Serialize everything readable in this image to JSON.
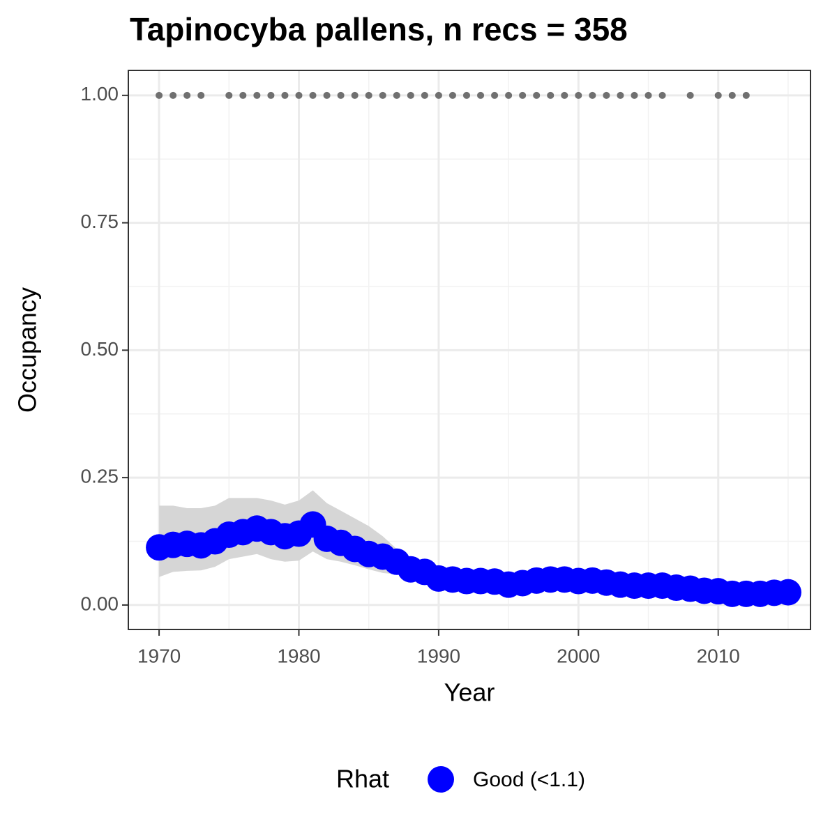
{
  "chart_data": {
    "type": "line",
    "title": "Tapinocyba pallens, n recs = 358",
    "x_label": "Year",
    "y_label": "Occupancy",
    "legend_title": "Rhat",
    "x": [
      1970,
      1971,
      1972,
      1973,
      1974,
      1975,
      1976,
      1977,
      1978,
      1979,
      1980,
      1981,
      1982,
      1983,
      1984,
      1985,
      1986,
      1987,
      1988,
      1989,
      1990,
      1991,
      1992,
      1993,
      1994,
      1995,
      1996,
      1997,
      1998,
      1999,
      2000,
      2001,
      2002,
      2003,
      2004,
      2005,
      2006,
      2007,
      2008,
      2009,
      2010,
      2011,
      2012,
      2013,
      2014,
      2015
    ],
    "series": [
      {
        "name": "Good (<1.1)",
        "color": "#0000ff",
        "values": [
          0.113,
          0.118,
          0.12,
          0.117,
          0.125,
          0.138,
          0.143,
          0.15,
          0.143,
          0.135,
          0.14,
          0.158,
          0.13,
          0.122,
          0.11,
          0.1,
          0.095,
          0.085,
          0.07,
          0.065,
          0.052,
          0.05,
          0.047,
          0.047,
          0.046,
          0.04,
          0.043,
          0.048,
          0.05,
          0.05,
          0.047,
          0.048,
          0.044,
          0.04,
          0.038,
          0.038,
          0.038,
          0.034,
          0.032,
          0.028,
          0.027,
          0.022,
          0.022,
          0.022,
          0.024,
          0.025
        ],
        "upper": [
          0.195,
          0.195,
          0.19,
          0.19,
          0.195,
          0.21,
          0.21,
          0.21,
          0.205,
          0.197,
          0.205,
          0.225,
          0.2,
          0.185,
          0.17,
          0.155,
          0.135,
          0.11,
          0.09,
          0.08,
          0.065,
          0.06,
          0.057,
          0.057,
          0.056,
          0.05,
          0.053,
          0.058,
          0.06,
          0.06,
          0.057,
          0.058,
          0.054,
          0.05,
          0.048,
          0.048,
          0.048,
          0.044,
          0.042,
          0.038,
          0.037,
          0.032,
          0.032,
          0.032,
          0.034,
          0.035
        ],
        "lower": [
          0.055,
          0.065,
          0.067,
          0.068,
          0.075,
          0.09,
          0.095,
          0.1,
          0.09,
          0.085,
          0.087,
          0.105,
          0.09,
          0.085,
          0.078,
          0.07,
          0.063,
          0.06,
          0.055,
          0.05,
          0.04,
          0.04,
          0.037,
          0.037,
          0.036,
          0.03,
          0.033,
          0.038,
          0.04,
          0.04,
          0.037,
          0.038,
          0.034,
          0.03,
          0.028,
          0.028,
          0.028,
          0.024,
          0.022,
          0.018,
          0.017,
          0.012,
          0.012,
          0.012,
          0.014,
          0.015
        ]
      }
    ],
    "ribbon_color": "#d6d6d6",
    "records": {
      "color": "#707070",
      "x": [
        1970,
        1971,
        1972,
        1973,
        1975,
        1976,
        1977,
        1978,
        1979,
        1980,
        1981,
        1982,
        1983,
        1984,
        1985,
        1986,
        1987,
        1988,
        1989,
        1990,
        1991,
        1992,
        1993,
        1994,
        1995,
        1996,
        1997,
        1998,
        1999,
        2000,
        2001,
        2002,
        2003,
        2004,
        2005,
        2006,
        2008,
        2010,
        2011,
        2012
      ],
      "values": [
        1,
        1,
        1,
        1,
        1,
        1,
        1,
        1,
        1,
        1,
        1,
        1,
        1,
        1,
        1,
        1,
        1,
        1,
        1,
        1,
        1,
        1,
        1,
        1,
        1,
        1,
        1,
        1,
        1,
        1,
        1,
        1,
        1,
        1,
        1,
        1,
        1,
        1,
        1,
        1
      ]
    },
    "xlim": [
      1967.8,
      2016.6
    ],
    "xticks": [
      1970,
      1980,
      1990,
      2000,
      2010
    ],
    "xminorticks": [
      1975,
      1985,
      1995,
      2005,
      2015
    ],
    "ylim": [
      -0.048,
      1.049
    ],
    "yticks": [
      {
        "value": 0,
        "label": "0.00"
      },
      {
        "value": 0.25,
        "label": "0.25"
      },
      {
        "value": 0.5,
        "label": "0.50"
      },
      {
        "value": 0.75,
        "label": "0.75"
      },
      {
        "value": 1,
        "label": "1.00"
      }
    ],
    "yminorticks": [
      0.125,
      0.375,
      0.625,
      0.875
    ],
    "grid": true,
    "legend_position": "bottom"
  }
}
